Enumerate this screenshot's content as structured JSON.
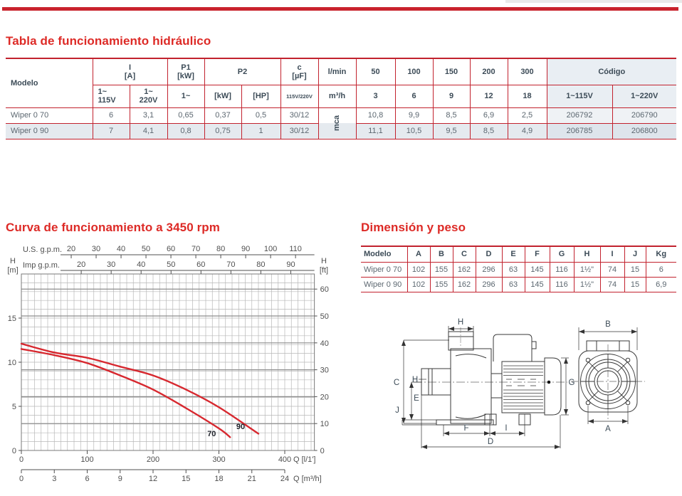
{
  "page": {
    "accent_red": "#dd2a26",
    "table_border_red": "#c2222e",
    "stripe_color": "#e5eaef"
  },
  "hydraulic_table": {
    "title": "Tabla de funcionamiento hidráulico",
    "headers": {
      "modelo": "Modelo",
      "i_label": "I",
      "i_unit": "[A]",
      "p1_label": "P1",
      "p1_unit": "[kW]",
      "p2_label": "P2",
      "c_label": "c",
      "c_unit": "[µF]",
      "v115_l1": "1~",
      "v115_l2": "115V",
      "v220_l1": "1~",
      "v220_l2": "220V",
      "p1_sub": "1~",
      "kw": "[kW]",
      "hp": "[HP]",
      "c_sub": "115V/220V",
      "lmin": "l/min",
      "m3h": "m³/h",
      "mca": "mca",
      "flows_lmin": [
        "50",
        "100",
        "150",
        "200",
        "300"
      ],
      "flows_m3h": [
        "3",
        "6",
        "9",
        "12",
        "18"
      ],
      "codigo": "Código",
      "cod115": "1~115V",
      "cod220": "1~220V"
    },
    "rows": [
      {
        "modelo": "Wiper 0 70",
        "i115": "6",
        "i220": "3,1",
        "p1": "0,65",
        "p2kw": "0,37",
        "p2hp": "0,5",
        "c": "30/12",
        "heads": [
          "10,8",
          "9,9",
          "8,5",
          "6,9",
          "2,5"
        ],
        "cod115": "206792",
        "cod220": "206790"
      },
      {
        "modelo": "Wiper 0 90",
        "i115": "7",
        "i220": "4,1",
        "p1": "0,8",
        "p2kw": "0,75",
        "p2hp": "1",
        "c": "30/12",
        "heads": [
          "11,1",
          "10,5",
          "9,5",
          "8,5",
          "4,9"
        ],
        "cod115": "206785",
        "cod220": "206800"
      }
    ]
  },
  "curve_section": {
    "title": "Curva de funcionamiento a 3450 rpm"
  },
  "chart_data": {
    "type": "line",
    "title": "Curva de funcionamiento a 3450 rpm",
    "x_range_lmin": [
      0,
      445
    ],
    "y_range_m": [
      0,
      20
    ],
    "grid": {
      "minor_x_step_lmin": 10,
      "minor_y_step_m": 1,
      "major_y_step_ft": 10,
      "grid_on": true
    },
    "x_axes": [
      {
        "label": "U.S. g.p.m.",
        "position": "top",
        "lmin_per_unit": 3.785,
        "ticks": [
          20,
          30,
          40,
          50,
          60,
          70,
          80,
          90,
          100,
          110
        ]
      },
      {
        "label": "Imp g.p.m.",
        "position": "top2",
        "lmin_per_unit": 4.546,
        "ticks": [
          20,
          30,
          40,
          50,
          60,
          70,
          80,
          90
        ]
      },
      {
        "label": "Q [l/1']",
        "position": "bottom",
        "lmin_per_unit": 1,
        "ticks": [
          0,
          100,
          200,
          300,
          400
        ]
      },
      {
        "label": "Q [m³/h]",
        "position": "bottom2",
        "lmin_per_unit": 16.6667,
        "ticks": [
          0,
          3,
          6,
          9,
          12,
          15,
          18,
          21,
          24
        ]
      }
    ],
    "y_axes": [
      {
        "label_top": "H",
        "label_unit": "[m]",
        "side": "left",
        "m_per_unit": 1,
        "ticks": [
          0,
          5,
          10,
          15
        ]
      },
      {
        "label_top": "H",
        "label_unit": "[ft]",
        "side": "right",
        "m_per_unit": 0.3048,
        "ticks": [
          0,
          10,
          20,
          30,
          40,
          50,
          60
        ]
      }
    ],
    "series": [
      {
        "name": "70",
        "color": "#d7282f",
        "points": [
          [
            0,
            11.5
          ],
          [
            50,
            10.8
          ],
          [
            100,
            9.9
          ],
          [
            150,
            8.5
          ],
          [
            200,
            6.9
          ],
          [
            250,
            4.8
          ],
          [
            300,
            2.5
          ],
          [
            317,
            1.5
          ]
        ],
        "label_at": [
          289,
          1.6
        ]
      },
      {
        "name": "90",
        "color": "#d7282f",
        "points": [
          [
            0,
            12.1
          ],
          [
            50,
            11.1
          ],
          [
            100,
            10.5
          ],
          [
            150,
            9.5
          ],
          [
            200,
            8.5
          ],
          [
            250,
            6.9
          ],
          [
            300,
            4.9
          ],
          [
            360,
            1.9
          ]
        ],
        "label_at": [
          333,
          2.4
        ]
      }
    ]
  },
  "dim_table": {
    "title": "Dimensión y peso",
    "columns": [
      "Modelo",
      "A",
      "B",
      "C",
      "D",
      "E",
      "F",
      "G",
      "H",
      "I",
      "J",
      "Kg"
    ],
    "rows": [
      [
        "Wiper 0 70",
        "102",
        "155",
        "162",
        "296",
        "63",
        "145",
        "116",
        "1½\"",
        "74",
        "15",
        "6"
      ],
      [
        "Wiper 0 90",
        "102",
        "155",
        "162",
        "296",
        "63",
        "145",
        "116",
        "1½\"",
        "74",
        "15",
        "6,9"
      ]
    ]
  },
  "drawing": {
    "side": {
      "H_top": "H",
      "C": "C",
      "H_left": "H",
      "E": "E",
      "J": "J",
      "G": "G",
      "F": "F",
      "I": "I",
      "D": "D"
    },
    "front": {
      "B": "B",
      "A": "A"
    }
  }
}
